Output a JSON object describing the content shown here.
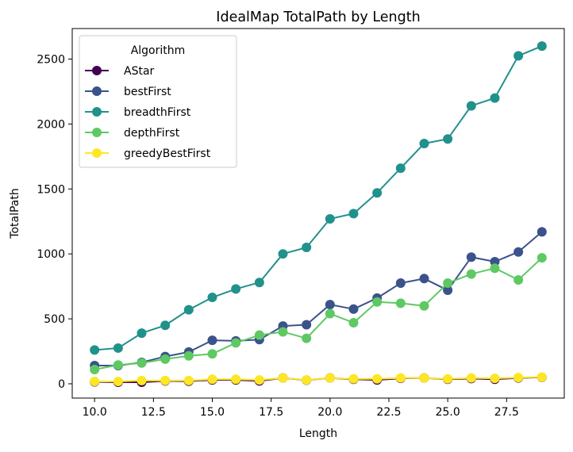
{
  "chart_data": {
    "type": "line",
    "title": "IdealMap TotalPath by Length",
    "xlabel": "Length",
    "ylabel": "TotalPath",
    "xlim": [
      9.05,
      29.95
    ],
    "ylim": [
      -110,
      2735
    ],
    "xticks": [
      10.0,
      12.5,
      15.0,
      17.5,
      20.0,
      22.5,
      25.0,
      27.5
    ],
    "xtick_labels": [
      "10.0",
      "12.5",
      "15.0",
      "17.5",
      "20.0",
      "22.5",
      "25.0",
      "27.5"
    ],
    "yticks": [
      0,
      500,
      1000,
      1500,
      2000,
      2500
    ],
    "ytick_labels": [
      "0",
      "500",
      "1000",
      "1500",
      "2000",
      "2500"
    ],
    "grid": false,
    "legend": {
      "title": "Algorithm",
      "placement": "top-left"
    },
    "x": [
      10,
      11,
      12,
      13,
      14,
      15,
      16,
      17,
      18,
      19,
      20,
      21,
      22,
      23,
      24,
      25,
      26,
      27,
      28,
      29
    ],
    "series": [
      {
        "name": "AStar",
        "color": "#440154",
        "values": [
          15,
          12,
          12,
          22,
          20,
          30,
          30,
          22,
          45,
          28,
          45,
          35,
          30,
          42,
          45,
          35,
          40,
          35,
          45,
          50
        ]
      },
      {
        "name": "bestFirst",
        "color": "#3b528b",
        "values": [
          140,
          140,
          165,
          210,
          245,
          335,
          330,
          340,
          445,
          455,
          610,
          575,
          660,
          775,
          810,
          720,
          975,
          940,
          1015,
          1170
        ]
      },
      {
        "name": "breadthFirst",
        "color": "#21918c",
        "values": [
          260,
          275,
          390,
          450,
          570,
          665,
          730,
          780,
          1000,
          1050,
          1270,
          1310,
          1470,
          1660,
          1850,
          1885,
          2140,
          2200,
          2525,
          2600
        ]
      },
      {
        "name": "depthFirst",
        "color": "#5ec962",
        "values": [
          110,
          145,
          160,
          190,
          215,
          230,
          315,
          375,
          400,
          350,
          540,
          470,
          630,
          620,
          600,
          775,
          845,
          890,
          800,
          970
        ]
      },
      {
        "name": "greedyBestFirst",
        "color": "#fde725",
        "values": [
          18,
          18,
          25,
          25,
          25,
          35,
          35,
          30,
          45,
          30,
          45,
          38,
          38,
          45,
          45,
          38,
          45,
          42,
          48,
          52
        ]
      }
    ]
  }
}
